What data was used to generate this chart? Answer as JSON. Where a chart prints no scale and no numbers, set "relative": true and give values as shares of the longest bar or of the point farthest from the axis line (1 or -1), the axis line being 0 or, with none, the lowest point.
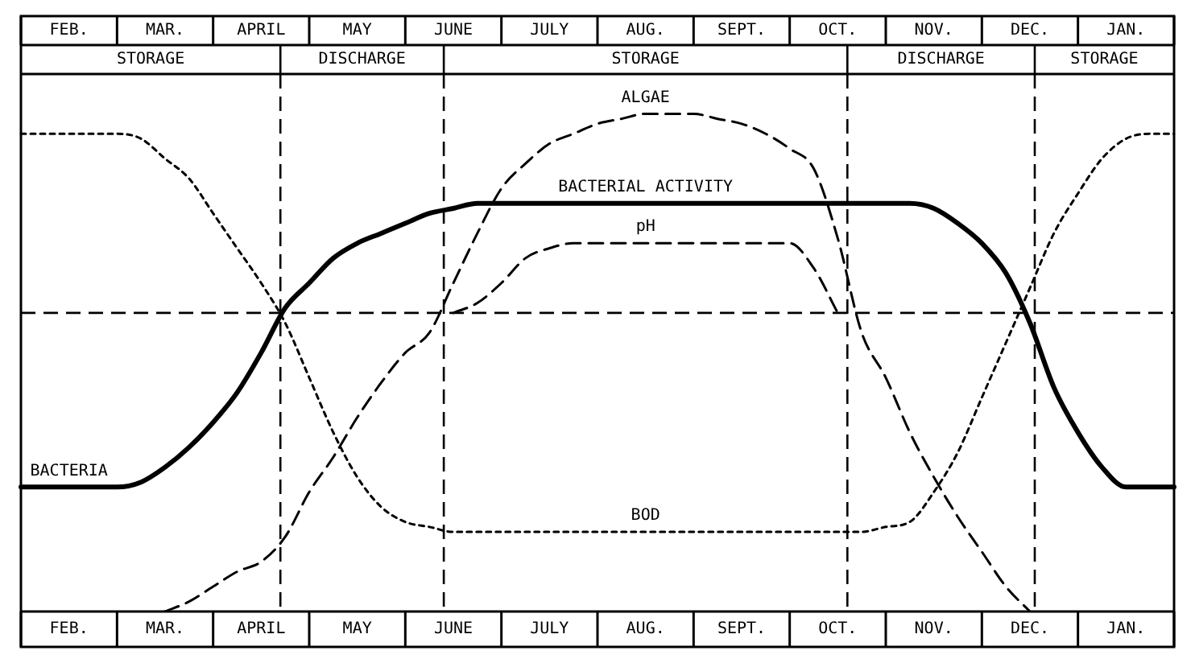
{
  "chart_data": {
    "type": "line",
    "relative": true,
    "categories": [
      null,
      null,
      "FEB.",
      null,
      null,
      null,
      "MAR.",
      null,
      null,
      null,
      "APRIL",
      null,
      null,
      null,
      "MAY",
      null,
      null,
      null,
      "JUNE",
      null,
      null,
      null,
      "JULY",
      null,
      null,
      null,
      "AUG.",
      null,
      null,
      null,
      "SEPT.",
      null,
      null,
      null,
      "OCT.",
      null,
      null,
      null,
      "NOV.",
      null,
      null,
      null,
      "DEC.",
      null,
      null,
      null,
      "JAN.",
      null,
      null
    ],
    "grid": false,
    "legend": false,
    "marker": "none",
    "series": [
      {
        "color": "#000000",
        "line_style": "solid",
        "values": [
          0.25,
          0.25,
          0.25,
          0.25,
          0.25,
          0.26,
          0.29,
          0.33,
          0.38,
          0.44,
          0.52,
          0.61,
          0.66,
          0.71,
          0.74,
          0.76,
          0.78,
          0.8,
          0.81,
          0.82,
          0.82,
          0.82,
          0.82,
          0.82,
          0.82,
          0.82,
          0.82,
          0.82,
          0.82,
          0.82,
          0.82,
          0.82,
          0.82,
          0.82,
          0.82,
          0.82,
          0.82,
          0.82,
          0.81,
          0.78,
          0.74,
          0.68,
          0.58,
          0.45,
          0.36,
          0.29,
          0.25,
          0.25,
          0.25
        ]
      },
      {
        "color": "#000000",
        "line_style": "dotted",
        "values": [
          0.96,
          0.96,
          0.96,
          0.96,
          0.96,
          0.95,
          0.91,
          0.87,
          0.8,
          0.73,
          0.66,
          0.58,
          0.47,
          0.36,
          0.27,
          0.21,
          0.18,
          0.17,
          0.16,
          0.16,
          0.16,
          0.16,
          0.16,
          0.16,
          0.16,
          0.16,
          0.16,
          0.16,
          0.16,
          0.16,
          0.16,
          0.16,
          0.16,
          0.16,
          0.16,
          0.16,
          0.17,
          0.18,
          0.24,
          0.32,
          0.43,
          0.54,
          0.65,
          0.76,
          0.84,
          0.91,
          0.95,
          0.96,
          0.96
        ]
      },
      {
        "color": "#000000",
        "line_style": "dashed",
        "values": [
          null,
          null,
          null,
          null,
          null,
          null,
          0,
          0.02,
          0.05,
          0.08,
          0.1,
          0.15,
          0.24,
          0.31,
          0.39,
          0.46,
          0.52,
          0.56,
          0.66,
          0.76,
          0.85,
          0.9,
          0.94,
          0.96,
          0.98,
          0.99,
          1.0,
          1.0,
          1.0,
          0.99,
          0.98,
          0.96,
          0.93,
          0.89,
          0.75,
          0.56,
          0.47,
          0.36,
          0.27,
          0.19,
          0.12,
          0.05,
          0,
          null,
          null,
          null,
          null,
          null,
          null
        ]
      },
      {
        "color": "#000000",
        "line_style": "dashed",
        "values": [
          null,
          null,
          null,
          null,
          null,
          null,
          null,
          null,
          null,
          null,
          null,
          null,
          null,
          null,
          null,
          null,
          null,
          null,
          0.6,
          0.62,
          0.66,
          0.71,
          0.73,
          0.74,
          0.74,
          0.74,
          0.74,
          0.74,
          0.74,
          0.74,
          0.74,
          0.74,
          0.74,
          0.69,
          0.6,
          null,
          null,
          null,
          null,
          null,
          null,
          null,
          null,
          null,
          null,
          null,
          null,
          null,
          null
        ]
      }
    ],
    "ref_lines": [
      {
        "axis": "y",
        "value": 0.6,
        "color": "#000000",
        "line_style": "dashed"
      }
    ],
    "annotations": [
      "STORAGE",
      "DISCHARGE",
      "STORAGE",
      "DISCHARGE",
      "STORAGE",
      {
        "text": "ALGAE",
        "x": "AUG.",
        "y": 1.0
      },
      {
        "text": "BACTERIAL ACTIVITY",
        "x": "AUG.",
        "y": 0.82
      },
      {
        "text": "pH",
        "x": "AUG.",
        "y": 0.74
      },
      {
        "text": "BOD",
        "x": "AUG.",
        "y": 0.16
      },
      {
        "text": "BACTERIA",
        "x": "FEB.",
        "y": 0.25
      }
    ]
  }
}
